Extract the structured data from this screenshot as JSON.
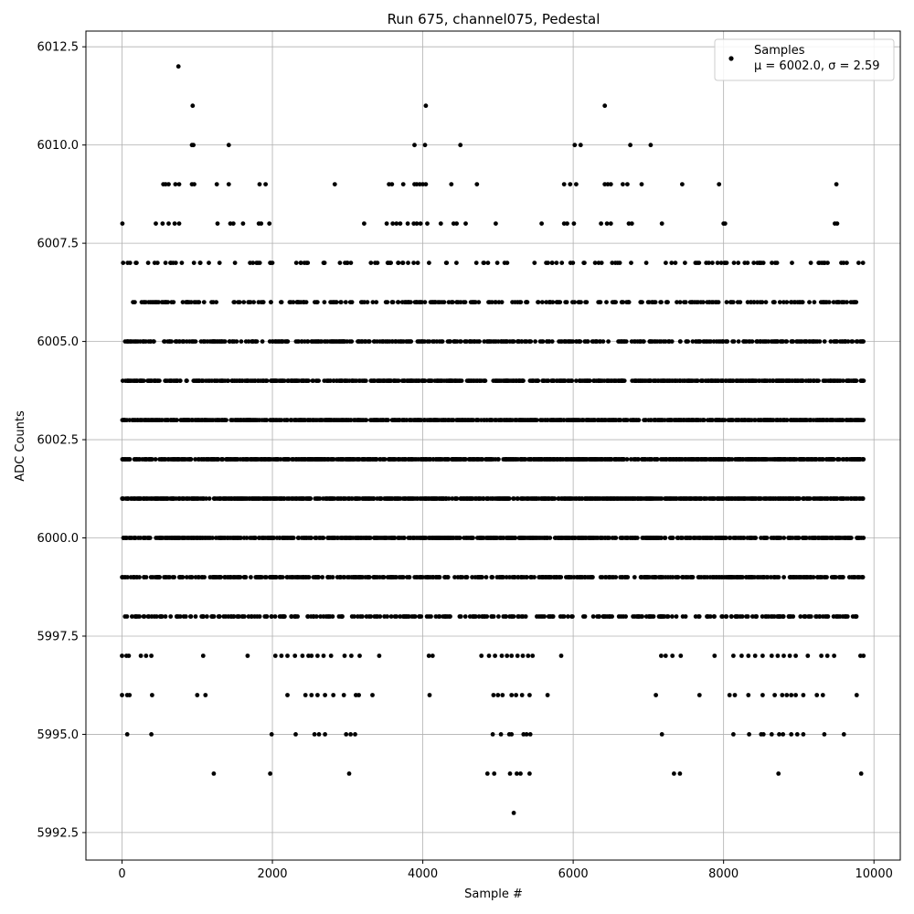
{
  "chart_data": {
    "type": "scatter",
    "title": "Run 675, channel075, Pedestal",
    "xlabel": "Sample #",
    "ylabel": "ADC Counts",
    "xlim": [
      -480,
      10350
    ],
    "ylim": [
      5991.8,
      6012.9
    ],
    "x_ticks": [
      0,
      2000,
      4000,
      6000,
      8000,
      10000
    ],
    "x_tick_labels": [
      "0",
      "2000",
      "4000",
      "6000",
      "8000",
      "10000"
    ],
    "y_ticks": [
      5992.5,
      5995.0,
      5997.5,
      6000.0,
      6002.5,
      6005.0,
      6007.5,
      6010.0,
      6012.5
    ],
    "y_tick_labels": [
      "5992.5",
      "5995.0",
      "5997.5",
      "6000.0",
      "6002.5",
      "6005.0",
      "6007.5",
      "6010.0",
      "6012.5"
    ],
    "grid": true,
    "legend_position": "top-right",
    "marker_color": "#000000",
    "series": [
      {
        "name": "Samples",
        "legend_line2": "μ = 6002.0, σ = 2.59",
        "sample_count": 9860,
        "x_range": [
          0,
          9860
        ],
        "mean": 6002.0,
        "std": 2.59,
        "levels_note": "integer ADC values, dense bands 5998-6006",
        "sparse_points": [
          [
            750,
            6012
          ],
          [
            940,
            6011
          ],
          [
            4040,
            6011
          ],
          [
            6420,
            6011
          ],
          [
            930,
            6010
          ],
          [
            950,
            6010
          ],
          [
            1420,
            6010
          ],
          [
            3890,
            6010
          ],
          [
            4030,
            6010
          ],
          [
            4500,
            6010
          ],
          [
            6020,
            6010
          ],
          [
            6100,
            6010
          ],
          [
            6760,
            6010
          ],
          [
            7030,
            6010
          ],
          [
            550,
            6009
          ],
          [
            580,
            6009
          ],
          [
            620,
            6009
          ],
          [
            710,
            6009
          ],
          [
            760,
            6009
          ],
          [
            930,
            6009
          ],
          [
            960,
            6009
          ],
          [
            1260,
            6009
          ],
          [
            1420,
            6009
          ],
          [
            1830,
            6009
          ],
          [
            1910,
            6009
          ],
          [
            2830,
            6009
          ],
          [
            3550,
            6009
          ],
          [
            3590,
            6009
          ],
          [
            3740,
            6009
          ],
          [
            3890,
            6009
          ],
          [
            3920,
            6009
          ],
          [
            3960,
            6009
          ],
          [
            4000,
            6009
          ],
          [
            4040,
            6009
          ],
          [
            4380,
            6009
          ],
          [
            4720,
            6009
          ],
          [
            5880,
            6009
          ],
          [
            5960,
            6009
          ],
          [
            6040,
            6009
          ],
          [
            6420,
            6009
          ],
          [
            6460,
            6009
          ],
          [
            6500,
            6009
          ],
          [
            6660,
            6009
          ],
          [
            6720,
            6009
          ],
          [
            6910,
            6009
          ],
          [
            7450,
            6009
          ],
          [
            7940,
            6009
          ],
          [
            9500,
            6009
          ],
          [
            5,
            6008
          ],
          [
            450,
            6008
          ],
          [
            540,
            6008
          ],
          [
            620,
            6008
          ],
          [
            700,
            6008
          ],
          [
            760,
            6008
          ],
          [
            1270,
            6008
          ],
          [
            1440,
            6008
          ],
          [
            1480,
            6008
          ],
          [
            1610,
            6008
          ],
          [
            1820,
            6008
          ],
          [
            1850,
            6008
          ],
          [
            1960,
            6008
          ],
          [
            3220,
            6008
          ],
          [
            3520,
            6008
          ],
          [
            3600,
            6008
          ],
          [
            3650,
            6008
          ],
          [
            3700,
            6008
          ],
          [
            3800,
            6008
          ],
          [
            3880,
            6008
          ],
          [
            3920,
            6008
          ],
          [
            3970,
            6008
          ],
          [
            4060,
            6008
          ],
          [
            4240,
            6008
          ],
          [
            4410,
            6008
          ],
          [
            4450,
            6008
          ],
          [
            4570,
            6008
          ],
          [
            4970,
            6008
          ],
          [
            5580,
            6008
          ],
          [
            5880,
            6008
          ],
          [
            5920,
            6008
          ],
          [
            6010,
            6008
          ],
          [
            6370,
            6008
          ],
          [
            6450,
            6008
          ],
          [
            6500,
            6008
          ],
          [
            6740,
            6008
          ],
          [
            6780,
            6008
          ],
          [
            7180,
            6008
          ],
          [
            8000,
            6008
          ],
          [
            8020,
            6008
          ],
          [
            9480,
            6008
          ],
          [
            9510,
            6008
          ],
          [
            0,
            5997
          ],
          [
            60,
            5997
          ],
          [
            90,
            5997
          ],
          [
            250,
            5997
          ],
          [
            320,
            5997
          ],
          [
            390,
            5997
          ],
          [
            1080,
            5997
          ],
          [
            1670,
            5997
          ],
          [
            2040,
            5997
          ],
          [
            2120,
            5997
          ],
          [
            2200,
            5997
          ],
          [
            2300,
            5997
          ],
          [
            2400,
            5997
          ],
          [
            2480,
            5997
          ],
          [
            2520,
            5997
          ],
          [
            2600,
            5997
          ],
          [
            2680,
            5997
          ],
          [
            2780,
            5997
          ],
          [
            2960,
            5997
          ],
          [
            3050,
            5997
          ],
          [
            3160,
            5997
          ],
          [
            3420,
            5997
          ],
          [
            4080,
            5997
          ],
          [
            4130,
            5997
          ],
          [
            4780,
            5997
          ],
          [
            4880,
            5997
          ],
          [
            4960,
            5997
          ],
          [
            5050,
            5997
          ],
          [
            5120,
            5997
          ],
          [
            5180,
            5997
          ],
          [
            5260,
            5997
          ],
          [
            5330,
            5997
          ],
          [
            5400,
            5997
          ],
          [
            5460,
            5997
          ],
          [
            5840,
            5997
          ],
          [
            7170,
            5997
          ],
          [
            7230,
            5997
          ],
          [
            7320,
            5997
          ],
          [
            7430,
            5997
          ],
          [
            7880,
            5997
          ],
          [
            8130,
            5997
          ],
          [
            8240,
            5997
          ],
          [
            8330,
            5997
          ],
          [
            8420,
            5997
          ],
          [
            8520,
            5997
          ],
          [
            8640,
            5997
          ],
          [
            8720,
            5997
          ],
          [
            8800,
            5997
          ],
          [
            8880,
            5997
          ],
          [
            8960,
            5997
          ],
          [
            9120,
            5997
          ],
          [
            9300,
            5997
          ],
          [
            9380,
            5997
          ],
          [
            9470,
            5997
          ],
          [
            9820,
            5997
          ],
          [
            9860,
            5997
          ],
          [
            0,
            5996
          ],
          [
            70,
            5996
          ],
          [
            100,
            5996
          ],
          [
            400,
            5996
          ],
          [
            1000,
            5996
          ],
          [
            1110,
            5996
          ],
          [
            2200,
            5996
          ],
          [
            2440,
            5996
          ],
          [
            2520,
            5996
          ],
          [
            2600,
            5996
          ],
          [
            2700,
            5996
          ],
          [
            2810,
            5996
          ],
          [
            2950,
            5996
          ],
          [
            3110,
            5996
          ],
          [
            3150,
            5996
          ],
          [
            3330,
            5996
          ],
          [
            4090,
            5996
          ],
          [
            4940,
            5996
          ],
          [
            5000,
            5996
          ],
          [
            5060,
            5996
          ],
          [
            5180,
            5996
          ],
          [
            5240,
            5996
          ],
          [
            5320,
            5996
          ],
          [
            5420,
            5996
          ],
          [
            5660,
            5996
          ],
          [
            7100,
            5996
          ],
          [
            7680,
            5996
          ],
          [
            8080,
            5996
          ],
          [
            8150,
            5996
          ],
          [
            8330,
            5996
          ],
          [
            8520,
            5996
          ],
          [
            8680,
            5996
          ],
          [
            8780,
            5996
          ],
          [
            8840,
            5996
          ],
          [
            8900,
            5996
          ],
          [
            8960,
            5996
          ],
          [
            9060,
            5996
          ],
          [
            9240,
            5996
          ],
          [
            9320,
            5996
          ],
          [
            9770,
            5996
          ],
          [
            70,
            5995
          ],
          [
            390,
            5995
          ],
          [
            1990,
            5995
          ],
          [
            2310,
            5995
          ],
          [
            2560,
            5995
          ],
          [
            2620,
            5995
          ],
          [
            2700,
            5995
          ],
          [
            2980,
            5995
          ],
          [
            3040,
            5995
          ],
          [
            3100,
            5995
          ],
          [
            4930,
            5995
          ],
          [
            5040,
            5995
          ],
          [
            5150,
            5995
          ],
          [
            5180,
            5995
          ],
          [
            5340,
            5995
          ],
          [
            5380,
            5995
          ],
          [
            5430,
            5995
          ],
          [
            7180,
            5995
          ],
          [
            8130,
            5995
          ],
          [
            8340,
            5995
          ],
          [
            8500,
            5995
          ],
          [
            8530,
            5995
          ],
          [
            8640,
            5995
          ],
          [
            8740,
            5995
          ],
          [
            8790,
            5995
          ],
          [
            8900,
            5995
          ],
          [
            8980,
            5995
          ],
          [
            9060,
            5995
          ],
          [
            9340,
            5995
          ],
          [
            9600,
            5995
          ],
          [
            1220,
            5994
          ],
          [
            1970,
            5994
          ],
          [
            3020,
            5994
          ],
          [
            4860,
            5994
          ],
          [
            4950,
            5994
          ],
          [
            5160,
            5994
          ],
          [
            5250,
            5994
          ],
          [
            5300,
            5994
          ],
          [
            5420,
            5994
          ],
          [
            7340,
            5994
          ],
          [
            7420,
            5994
          ],
          [
            8730,
            5994
          ],
          [
            9830,
            5994
          ],
          [
            5210,
            5993
          ]
        ]
      }
    ]
  }
}
